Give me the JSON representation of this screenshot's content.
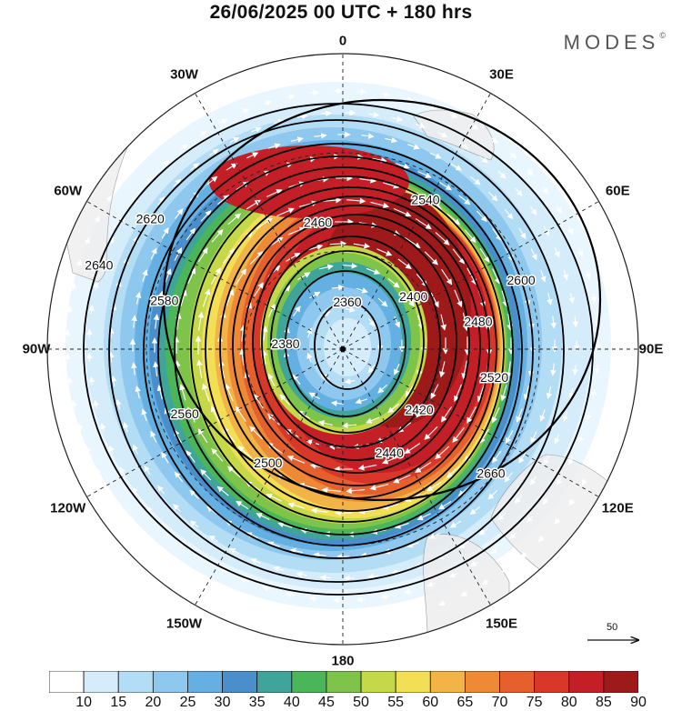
{
  "title": "26/06/2025  00 UTC  + 180 hrs",
  "brand": "MODES",
  "brand_mark": "©",
  "longitude_labels": [
    "0",
    "30E",
    "60E",
    "90E",
    "120E",
    "150E",
    "180",
    "150W",
    "120W",
    "90W",
    "60W",
    "30W"
  ],
  "scale_vector_label": "50",
  "colorbar": {
    "ticks": [
      "10",
      "15",
      "20",
      "25",
      "30",
      "35",
      "40",
      "45",
      "50",
      "55",
      "60",
      "65",
      "70",
      "75",
      "80",
      "85",
      "90"
    ],
    "colors": [
      "#ffffff",
      "#d5ecfa",
      "#b3dcf5",
      "#8ec8ee",
      "#65b0e2",
      "#4a8fcc",
      "#3fa49a",
      "#4bb55a",
      "#7ec44a",
      "#c4d84a",
      "#f3df55",
      "#f2b446",
      "#ee8a36",
      "#e6602d",
      "#d8372a",
      "#c41f26",
      "#9e1a1a"
    ]
  },
  "contours": [
    {
      "label": "2660",
      "color": "#000000"
    },
    {
      "label": "2640",
      "color": "#000000"
    },
    {
      "label": "2620",
      "color": "#000000"
    },
    {
      "label": "2600",
      "color": "#000000"
    },
    {
      "label": "2580",
      "color": "#000000"
    },
    {
      "label": "2560",
      "color": "#000000"
    },
    {
      "label": "2540",
      "color": "#000000"
    },
    {
      "label": "2520",
      "color": "#000000"
    },
    {
      "label": "2500",
      "color": "#000000"
    },
    {
      "label": "2480",
      "color": "#000000"
    },
    {
      "label": "2460",
      "color": "#000000"
    },
    {
      "label": "2440",
      "color": "#000000"
    },
    {
      "label": "2420",
      "color": "#000000"
    },
    {
      "label": "2400",
      "color": "#000000"
    },
    {
      "label": "2380",
      "color": "#000000"
    },
    {
      "label": "2360",
      "color": "#000000"
    }
  ]
}
